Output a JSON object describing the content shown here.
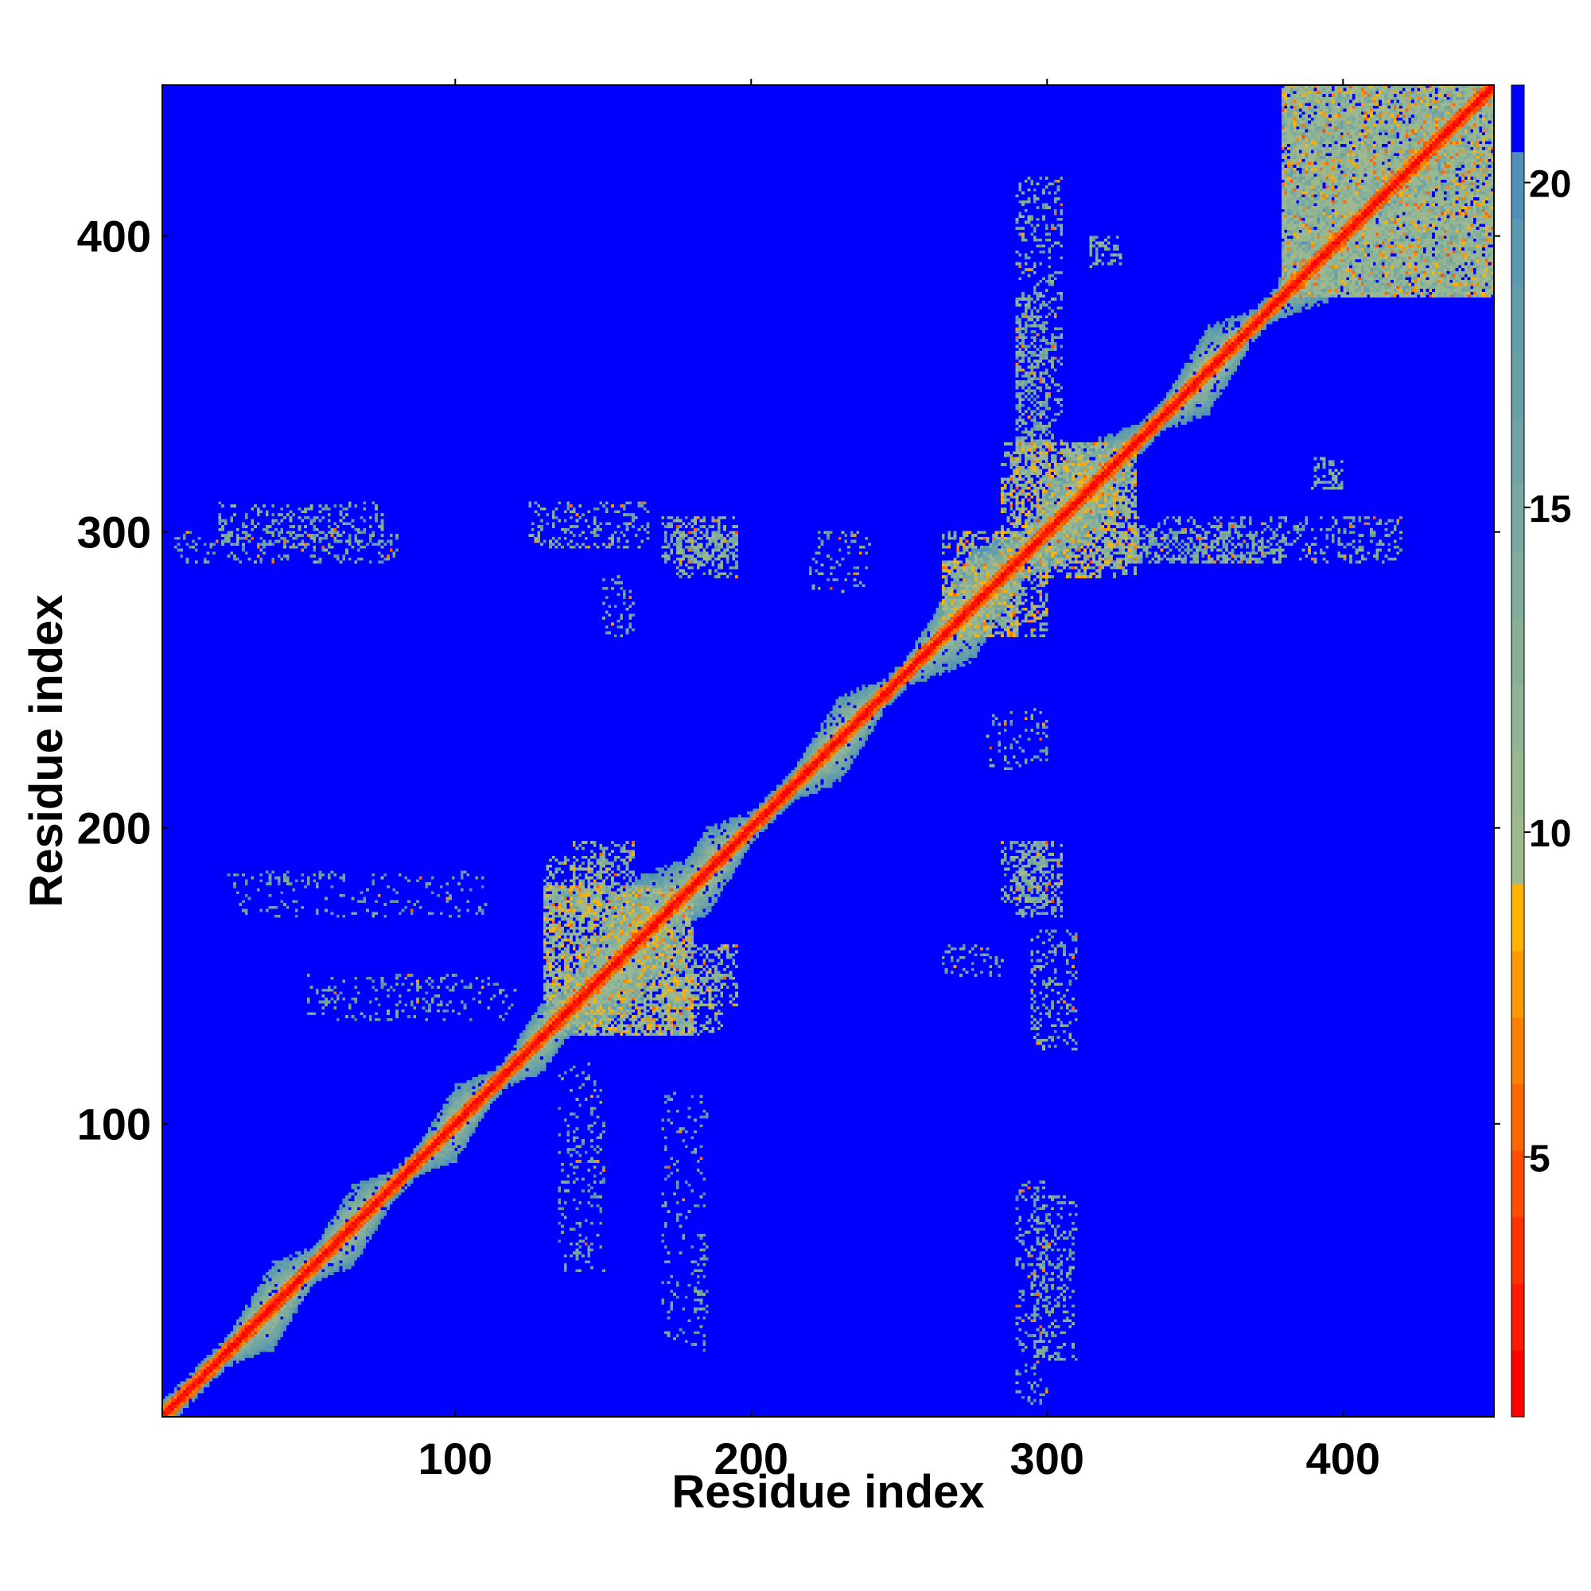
{
  "chart_data": {
    "type": "heatmap",
    "title": "",
    "xlabel": "Residue index",
    "ylabel": "Residue index",
    "xlim": [
      1,
      451
    ],
    "ylim": [
      1,
      451
    ],
    "x_ticks": [
      100,
      200,
      300,
      400
    ],
    "y_ticks": [
      100,
      200,
      300,
      400
    ],
    "x_tick_labels": [
      "100",
      "200",
      "300",
      "400"
    ],
    "y_tick_labels": [
      "100",
      "200",
      "300",
      "400"
    ],
    "colorbar": {
      "range": [
        1,
        21.5
      ],
      "ticks": [
        5,
        10,
        15,
        20
      ],
      "tick_labels": [
        "5",
        "10",
        "15",
        "20"
      ],
      "position": "right",
      "colors": [
        "#ff0000",
        "#ff1a00",
        "#ff3300",
        "#ff4d00",
        "#ff6600",
        "#ff8000",
        "#ff9900",
        "#ffb300",
        "#a0b98c",
        "#98b890",
        "#90b494",
        "#88b098",
        "#80ac9c",
        "#78a8a0",
        "#70a4a4",
        "#68a0a8",
        "#609cac",
        "#5898b0",
        "#5090b8",
        "#0000ff"
      ]
    },
    "background_value": 21.5,
    "background_color": "#0000ff",
    "diagonal": {
      "description": "contact band along the main diagonal; values rise from 1 on the diagonal to ~20 at the band edge",
      "domains": [
        {
          "center": 38,
          "half_width": 10
        },
        {
          "center": 65,
          "half_width": 9
        },
        {
          "center": 100,
          "half_width": 8
        },
        {
          "center": 130,
          "half_width": 8
        },
        {
          "center": 160,
          "half_width": 18
        },
        {
          "center": 185,
          "half_width": 10
        },
        {
          "center": 230,
          "half_width": 10
        },
        {
          "center": 275,
          "half_width": 14
        },
        {
          "center": 310,
          "half_width": 14
        },
        {
          "center": 355,
          "half_width": 10
        },
        {
          "center": 395,
          "half_width": 12
        },
        {
          "center": 430,
          "half_width": 10
        }
      ]
    },
    "off_diagonal_contacts": [
      {
        "x": [
          130,
          180
        ],
        "y": [
          130,
          180
        ],
        "level": 12,
        "density": 0.45
      },
      {
        "x": [
          140,
          160
        ],
        "y": [
          170,
          195
        ],
        "level": 13,
        "density": 0.35
      },
      {
        "x": [
          170,
          190
        ],
        "y": [
          130,
          150
        ],
        "level": 13,
        "density": 0.35
      },
      {
        "x": [
          175,
          195
        ],
        "y": [
          285,
          300
        ],
        "level": 14,
        "density": 0.4
      },
      {
        "x": [
          265,
          290
        ],
        "y": [
          265,
          300
        ],
        "level": 12,
        "density": 0.45
      },
      {
        "x": [
          290,
          330
        ],
        "y": [
          285,
          330
        ],
        "level": 12,
        "density": 0.45
      },
      {
        "x": [
          290,
          305
        ],
        "y": [
          170,
          195
        ],
        "level": 14,
        "density": 0.4
      },
      {
        "x": [
          290,
          305
        ],
        "y": [
          330,
          420
        ],
        "level": 15,
        "density": 0.25
      },
      {
        "x": [
          295,
          310
        ],
        "y": [
          20,
          75
        ],
        "level": 15,
        "density": 0.25
      },
      {
        "x": [
          295,
          310
        ],
        "y": [
          125,
          165
        ],
        "level": 15,
        "density": 0.25
      },
      {
        "x": [
          380,
          451
        ],
        "y": [
          380,
          451
        ],
        "level": 13,
        "density": 0.45
      },
      {
        "x": [
          380,
          451
        ],
        "y": [
          380,
          451
        ],
        "level": 13,
        "density": 0.45
      },
      {
        "x": [
          390,
          400
        ],
        "y": [
          315,
          325
        ],
        "level": 14,
        "density": 0.4
      },
      {
        "x": [
          5,
          80
        ],
        "y": [
          290,
          300
        ],
        "level": 16,
        "density": 0.2
      },
      {
        "x": [
          330,
          380
        ],
        "y": [
          290,
          300
        ],
        "level": 15,
        "density": 0.35
      },
      {
        "x": [
          20,
          60
        ],
        "y": [
          180,
          185
        ],
        "level": 17,
        "density": 0.15
      },
      {
        "x": [
          265,
          285
        ],
        "y": [
          150,
          160
        ],
        "level": 16,
        "density": 0.2
      },
      {
        "x": [
          135,
          150
        ],
        "y": [
          50,
          120
        ],
        "level": 17,
        "density": 0.15
      },
      {
        "x": [
          170,
          185
        ],
        "y": [
          25,
          110
        ],
        "level": 17,
        "density": 0.12
      },
      {
        "x": [
          220,
          240
        ],
        "y": [
          280,
          300
        ],
        "level": 16,
        "density": 0.15
      }
    ]
  }
}
